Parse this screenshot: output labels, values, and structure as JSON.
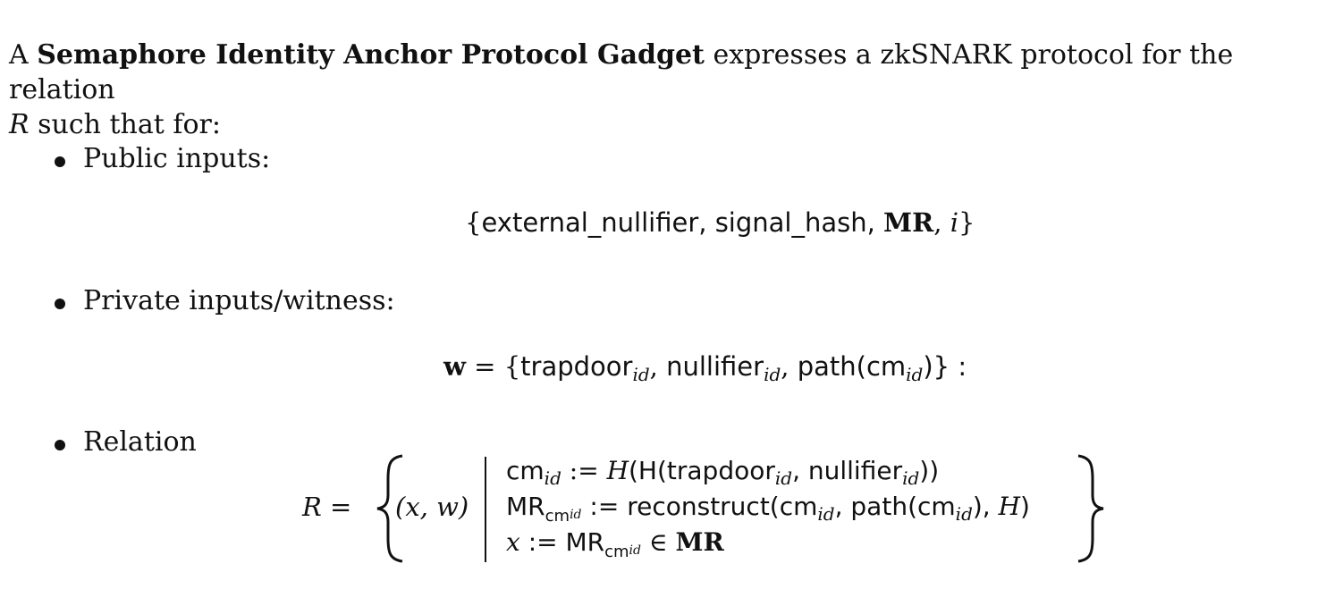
{
  "intro": {
    "prefix": "A ",
    "term": "Semaphore Identity Anchor Protocol Gadget",
    "suffix": " expresses a zkSNARK protocol for the relation",
    "line2_symbol": "R",
    "line2_text": " such that for:"
  },
  "bullets": [
    {
      "label": "Public inputs:"
    },
    {
      "label": "Private inputs/witness:"
    },
    {
      "label": "Relation"
    }
  ],
  "public_inputs": {
    "open": "{",
    "external_nullifier": "external_nullifier,",
    "signal_hash": "signal_hash,",
    "mr": "MR",
    "comma": ",",
    "i": "i",
    "close": "}"
  },
  "witness": {
    "w": "w",
    "eq": " = {",
    "trapdoor": "trapdoor",
    "nullifier": "nullifier",
    "path": "path(cm",
    "id": "id",
    "close": ")}",
    "colon": " :",
    "comma": ","
  },
  "relation": {
    "R": "R",
    "eq": " =",
    "pair": "(x, w)",
    "line1": {
      "cm": "cm",
      "id": "id",
      "assign": " := ",
      "H": "H",
      "mid": "(H(trapdoor",
      "nullifier": ", nullifier",
      "end": "))"
    },
    "line2": {
      "MR": "MR",
      "cm": "cm",
      "id": "id",
      "assign": " := reconstruct(cm",
      "path": ", path(cm",
      "tail": "), ",
      "H": "H",
      "close": ")"
    },
    "line3": {
      "x": "x",
      "assign": " := MR",
      "cm": "cm",
      "id": "id",
      "in": " ∈ ",
      "MR": "MR"
    }
  }
}
